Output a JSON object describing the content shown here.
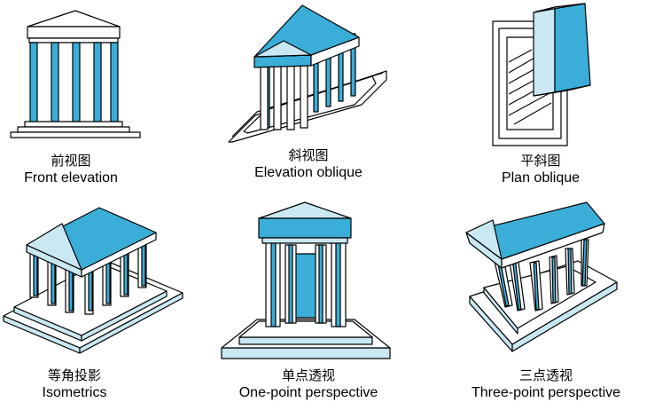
{
  "colors": {
    "accent": "#3aaed8",
    "accent_light": "#c9e8f3",
    "line": "#000000",
    "paper": "#ffffff"
  },
  "panels": [
    {
      "zh": "前视图",
      "en": "Front elevation"
    },
    {
      "zh": "斜视图",
      "en": "Elevation oblique"
    },
    {
      "zh": "平斜图",
      "en": "Plan oblique"
    },
    {
      "zh": "等角投影",
      "en": "Isometrics"
    },
    {
      "zh": "单点透视",
      "en": "One-point perspective"
    },
    {
      "zh": "三点透视",
      "en": "Three-point perspective"
    }
  ]
}
